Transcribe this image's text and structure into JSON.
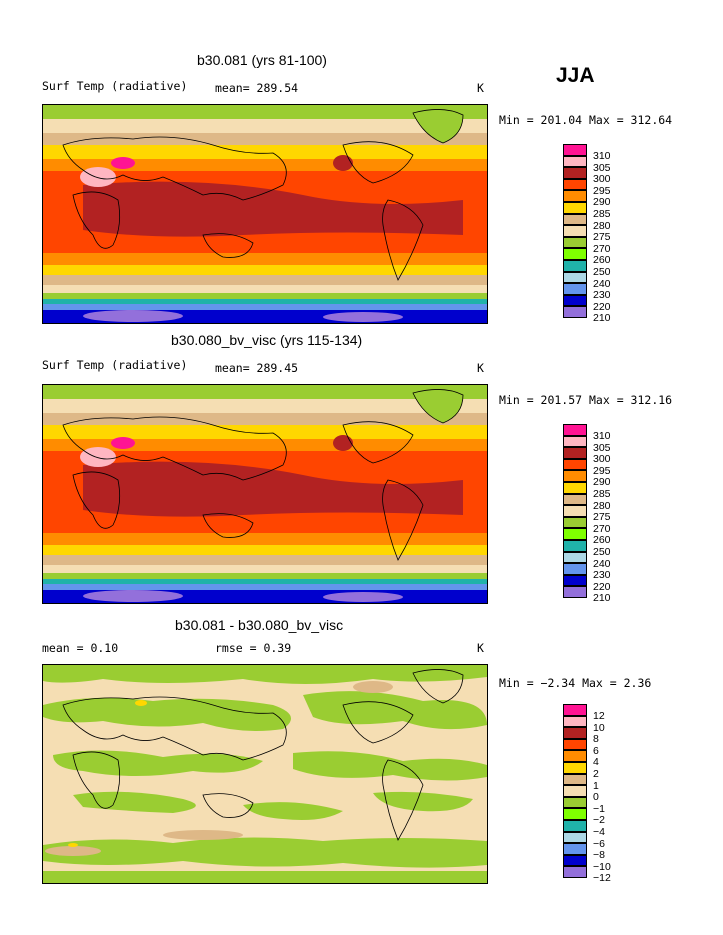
{
  "season": "JJA",
  "panels": [
    {
      "title": "b30.081 (yrs 81-100)",
      "left_label": "Surf Temp (radiative)",
      "mean_text": "mean= 289.54",
      "units": "K",
      "minmax": "Min = 201.04 Max = 312.64",
      "colorbar_labels": [
        "310",
        "305",
        "300",
        "295",
        "290",
        "285",
        "280",
        "275",
        "270",
        "260",
        "250",
        "240",
        "230",
        "220",
        "210"
      ]
    },
    {
      "title": "b30.080_bv_visc (yrs 115-134)",
      "left_label": "Surf Temp (radiative)",
      "mean_text": "mean= 289.45",
      "units": "K",
      "minmax": "Min = 201.57 Max = 312.16",
      "colorbar_labels": [
        "310",
        "305",
        "300",
        "295",
        "290",
        "285",
        "280",
        "275",
        "270",
        "260",
        "250",
        "240",
        "230",
        "220",
        "210"
      ]
    },
    {
      "title": "b30.081 - b30.080_bv_visc",
      "left_label": "mean =    0.10",
      "mean_text": "rmse =    0.39",
      "units": "K",
      "minmax": "Min =  −2.34 Max =    2.36",
      "colorbar_labels": [
        "12",
        "10",
        "8",
        "6",
        "4",
        "2",
        "1",
        "0",
        "−1",
        "−2",
        "−4",
        "−6",
        "−8",
        "−10",
        "−12"
      ]
    }
  ],
  "colors": {
    "scale": [
      "#ff1493",
      "#ffb6c1",
      "#b22222",
      "#ff4500",
      "#ff8c00",
      "#ffd700",
      "#deb887",
      "#f5deb3",
      "#9acd32",
      "#7fff00",
      "#20b2aa",
      "#add8e6",
      "#6495ed",
      "#0000cd",
      "#9370db"
    ],
    "land_outline": "#000000"
  },
  "chart_data": [
    {
      "type": "heatmap",
      "title": "b30.081 (yrs 81-100)",
      "variable": "Surf Temp (radiative)",
      "mean": 289.54,
      "units": "K",
      "min": 201.04,
      "max": 312.64,
      "colorbar_levels": [
        210,
        220,
        230,
        240,
        250,
        260,
        270,
        275,
        280,
        285,
        290,
        295,
        300,
        305,
        310
      ],
      "zonal_profile_description": "warm (295-305 K) tropics, cold (<230 K) Antarctica, 275-285 K high northern latitudes"
    },
    {
      "type": "heatmap",
      "title": "b30.080_bv_visc (yrs 115-134)",
      "variable": "Surf Temp (radiative)",
      "mean": 289.45,
      "units": "K",
      "min": 201.57,
      "max": 312.16,
      "colorbar_levels": [
        210,
        220,
        230,
        240,
        250,
        260,
        270,
        275,
        280,
        285,
        290,
        295,
        300,
        305,
        310
      ]
    },
    {
      "type": "heatmap",
      "title": "b30.081 - b30.080_bv_visc",
      "mean": 0.1,
      "rmse": 0.39,
      "units": "K",
      "min": -2.34,
      "max": 2.36,
      "colorbar_levels": [
        -12,
        -10,
        -8,
        -6,
        -4,
        -2,
        -1,
        0,
        1,
        2,
        4,
        6,
        8,
        10,
        12
      ]
    }
  ]
}
